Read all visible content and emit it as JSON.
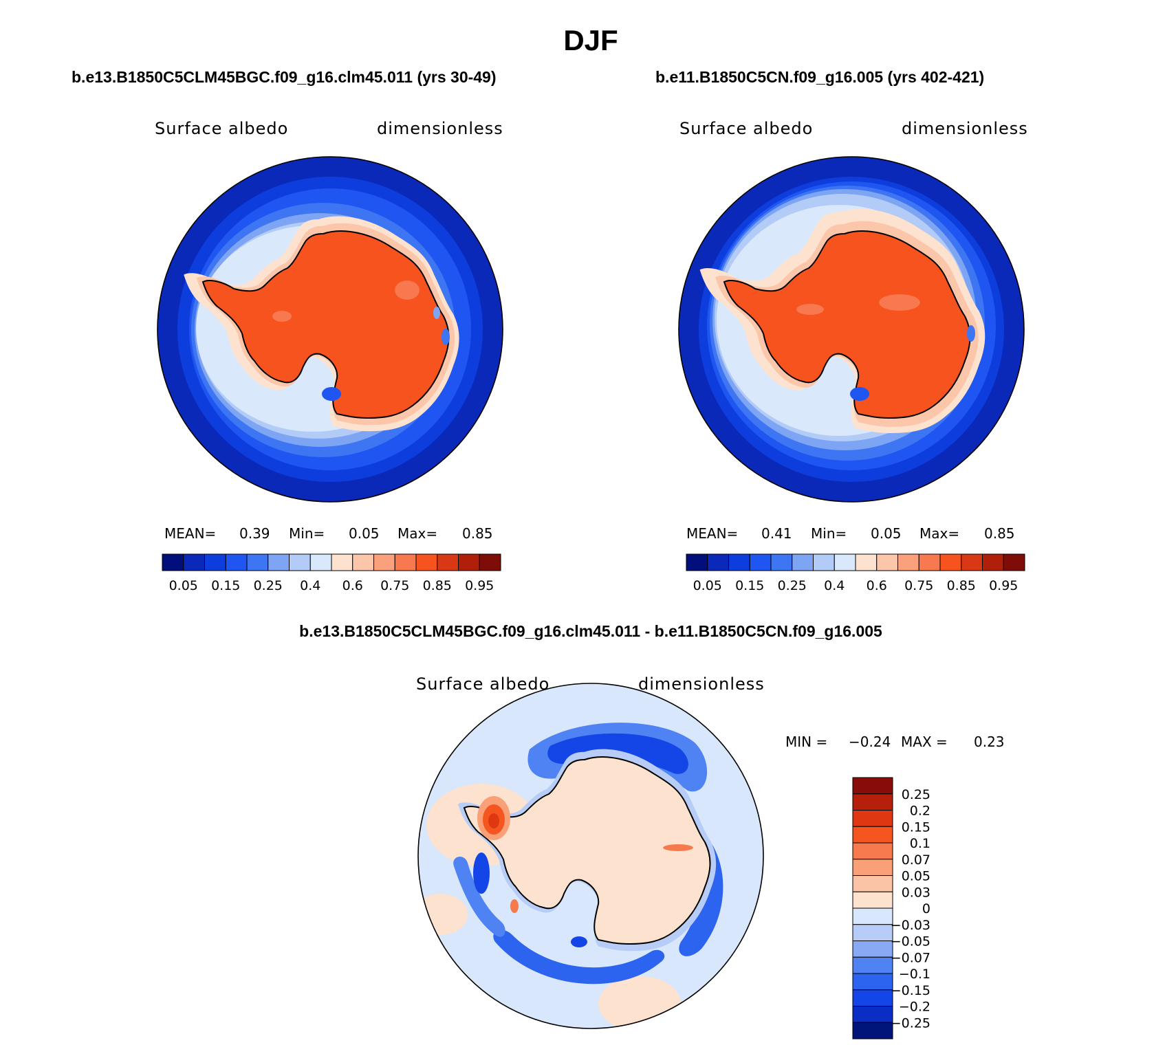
{
  "title": "DJF",
  "colors": {
    "albedo_scale": [
      "#000f7a",
      "#0a29b8",
      "#0d3ddc",
      "#1f55f0",
      "#3d75f2",
      "#7ea4f4",
      "#b2ccf7",
      "#d9e8fb",
      "#fde3cf",
      "#fcc6aa",
      "#faa07c",
      "#f8784f",
      "#f6531f",
      "#d83813",
      "#b01f0a",
      "#7d0d06"
    ],
    "diff_scale": [
      "#00157a",
      "#0a2ec4",
      "#1445e6",
      "#2c63ef",
      "#4f82f2",
      "#88aaf5",
      "#b7cdf8",
      "#d8e7fb",
      "#fde3cf",
      "#fcc4a6",
      "#f9a078",
      "#f67a4d",
      "#f5561f",
      "#de3711",
      "#b6200b",
      "#880c07"
    ],
    "land_outline": "#000000"
  },
  "panels": [
    {
      "id": "case",
      "title": "b.e13.B1850C5CLM45BGC.f09_g16.clm45.011 (yrs 30-49)",
      "variable": "Surface albedo",
      "units": "dimensionless",
      "stats": {
        "mean_label": "MEAN=",
        "mean": "0.39",
        "min_label": "Min=",
        "min": "0.05",
        "max_label": "Max=",
        "max": "0.85"
      },
      "colorbar_labels": [
        "0.05",
        "0.15",
        "0.25",
        "0.4",
        "0.6",
        "0.75",
        "0.85",
        "0.95"
      ]
    },
    {
      "id": "control",
      "title": "b.e11.B1850C5CN.f09_g16.005 (yrs 402-421)",
      "variable": "Surface albedo",
      "units": "dimensionless",
      "stats": {
        "mean_label": "MEAN=",
        "mean": "0.41",
        "min_label": "Min=",
        "min": "0.05",
        "max_label": "Max=",
        "max": "0.85"
      },
      "colorbar_labels": [
        "0.05",
        "0.15",
        "0.25",
        "0.4",
        "0.6",
        "0.75",
        "0.85",
        "0.95"
      ]
    }
  ],
  "difference": {
    "title": "b.e13.B1850C5CLM45BGC.f09_g16.clm45.011 - b.e11.B1850C5CN.f09_g16.005",
    "variable": "Surface albedo",
    "units": "dimensionless",
    "stats": {
      "min_label": "MIN =",
      "min": "−0.24",
      "max_label": "MAX =",
      "max": "0.23"
    },
    "colorbar_labels": [
      "0.25",
      "0.2",
      "0.15",
      "0.1",
      "0.07",
      "0.05",
      "0.03",
      "0",
      "−0.03",
      "−0.05",
      "−0.07",
      "−0.1",
      "−0.15",
      "−0.2",
      "−0.25"
    ]
  }
}
